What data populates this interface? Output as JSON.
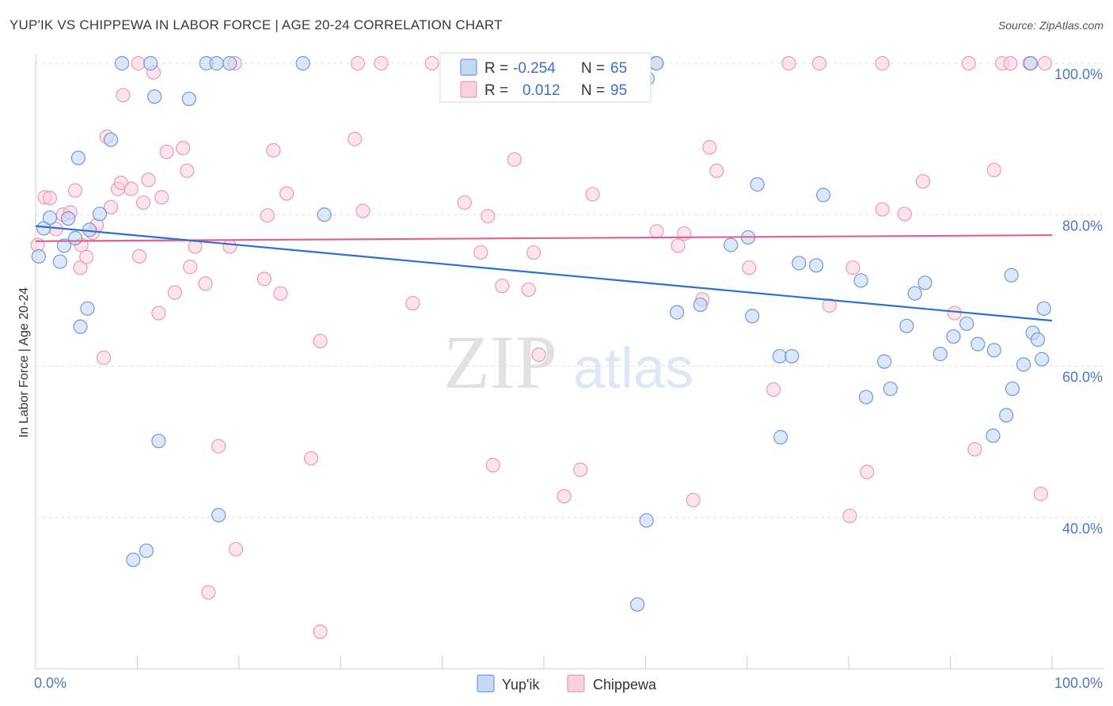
{
  "title": "YUP'IK VS CHIPPEWA IN LABOR FORCE | AGE 20-24 CORRELATION CHART",
  "source": "Source: ZipAtlas.com",
  "watermark": {
    "zip": "ZIP",
    "atlas": "atlas"
  },
  "legend_box": {
    "rows": [
      {
        "r_label": "R =",
        "r_value": "-0.254",
        "n_label": "N =",
        "n_value": "65"
      },
      {
        "r_label": "R =",
        "r_value": "0.012",
        "n_label": "N =",
        "n_value": "95"
      }
    ]
  },
  "colors": {
    "yupik_fill": "#c5d9f5",
    "yupik_stroke": "#6f9ad8",
    "yupik_line": "#2f6fce",
    "chippewa_fill": "#f9cfdd",
    "chippewa_stroke": "#ec9ab6",
    "chippewa_line": "#e2628f",
    "tick_text": "#4a78c8",
    "grid": "#dddddd"
  },
  "chart_data": {
    "type": "scatter",
    "title": "YUP'IK VS CHIPPEWA IN LABOR FORCE | AGE 20-24 CORRELATION CHART",
    "xlabel": "",
    "ylabel": "In Labor Force | Age 20-24",
    "xlim": [
      0,
      100
    ],
    "ylim": [
      20,
      102
    ],
    "x_tick_labels": [
      "0.0%",
      "100.0%"
    ],
    "y_ticks": [
      40,
      60,
      80,
      100
    ],
    "y_tick_labels": [
      "40.0%",
      "60.0%",
      "80.0%",
      "100.0%"
    ],
    "grid": true,
    "legend_position": "bottom-center",
    "series": [
      {
        "name": "Yup'ik",
        "r": -0.254,
        "n": 65,
        "trend": {
          "x": [
            0,
            100
          ],
          "y": [
            78.5,
            66.0
          ]
        },
        "points": [
          [
            0.3,
            74.5
          ],
          [
            0.8,
            78.2
          ],
          [
            1.4,
            79.6
          ],
          [
            2.4,
            73.8
          ],
          [
            2.8,
            75.9
          ],
          [
            3.2,
            79.5
          ],
          [
            3.9,
            76.9
          ],
          [
            5.1,
            67.6
          ],
          [
            4.4,
            65.2
          ],
          [
            5.3,
            78.0
          ],
          [
            6.3,
            80.1
          ],
          [
            4.2,
            87.5
          ],
          [
            7.4,
            89.9
          ],
          [
            8.5,
            100
          ],
          [
            11.3,
            100
          ],
          [
            16.8,
            100
          ],
          [
            17.8,
            100
          ],
          [
            19.1,
            100
          ],
          [
            11.7,
            95.6
          ],
          [
            15.1,
            95.3
          ],
          [
            12.1,
            50.1
          ],
          [
            9.6,
            34.4
          ],
          [
            10.9,
            35.6
          ],
          [
            18.0,
            40.3
          ],
          [
            26.3,
            100
          ],
          [
            28.4,
            80.0
          ],
          [
            51.6,
            100
          ],
          [
            60.2,
            98.0
          ],
          [
            77.5,
            82.6
          ],
          [
            61.1,
            100
          ],
          [
            70.1,
            77.0
          ],
          [
            63.1,
            67.1
          ],
          [
            65.4,
            68.1
          ],
          [
            68.4,
            76.0
          ],
          [
            70.5,
            66.6
          ],
          [
            76.8,
            73.3
          ],
          [
            73.2,
            61.3
          ],
          [
            74.4,
            61.3
          ],
          [
            73.3,
            50.6
          ],
          [
            60.1,
            39.6
          ],
          [
            59.2,
            28.5
          ],
          [
            71.0,
            84.0
          ],
          [
            75.1,
            73.6
          ],
          [
            81.2,
            71.3
          ],
          [
            83.5,
            60.6
          ],
          [
            81.7,
            55.9
          ],
          [
            84.1,
            57.0
          ],
          [
            85.7,
            65.3
          ],
          [
            86.5,
            69.6
          ],
          [
            87.5,
            71.0
          ],
          [
            89.0,
            61.6
          ],
          [
            90.3,
            63.9
          ],
          [
            91.6,
            65.6
          ],
          [
            92.7,
            62.9
          ],
          [
            94.2,
            50.8
          ],
          [
            95.5,
            53.5
          ],
          [
            96.1,
            57.0
          ],
          [
            96.0,
            72.0
          ],
          [
            97.2,
            60.2
          ],
          [
            98.1,
            64.4
          ],
          [
            98.6,
            63.5
          ],
          [
            99.0,
            60.9
          ],
          [
            99.2,
            67.6
          ],
          [
            94.3,
            62.1
          ],
          [
            97.9,
            100
          ]
        ]
      },
      {
        "name": "Chippewa",
        "r": 0.012,
        "n": 95,
        "trend": {
          "x": [
            0,
            100
          ],
          "y": [
            76.5,
            77.3
          ]
        },
        "points": [
          [
            0.2,
            76.0
          ],
          [
            0.9,
            82.3
          ],
          [
            1.4,
            82.2
          ],
          [
            2.0,
            78.1
          ],
          [
            2.7,
            80.0
          ],
          [
            3.4,
            80.3
          ],
          [
            3.9,
            83.2
          ],
          [
            4.5,
            76.0
          ],
          [
            4.4,
            73.0
          ],
          [
            5.0,
            74.4
          ],
          [
            5.6,
            77.6
          ],
          [
            6.0,
            78.6
          ],
          [
            6.7,
            61.1
          ],
          [
            7.0,
            90.3
          ],
          [
            7.4,
            81.0
          ],
          [
            8.1,
            83.4
          ],
          [
            8.4,
            84.2
          ],
          [
            8.6,
            95.8
          ],
          [
            9.4,
            83.4
          ],
          [
            10.1,
            100
          ],
          [
            10.2,
            74.5
          ],
          [
            10.6,
            81.6
          ],
          [
            11.1,
            84.6
          ],
          [
            11.6,
            98.8
          ],
          [
            12.1,
            67.0
          ],
          [
            12.4,
            82.3
          ],
          [
            12.9,
            88.3
          ],
          [
            13.7,
            69.7
          ],
          [
            14.5,
            88.8
          ],
          [
            14.9,
            85.8
          ],
          [
            15.2,
            73.1
          ],
          [
            15.7,
            75.8
          ],
          [
            16.7,
            70.9
          ],
          [
            17.0,
            30.1
          ],
          [
            18.0,
            49.4
          ],
          [
            19.1,
            75.8
          ],
          [
            19.6,
            100
          ],
          [
            19.7,
            35.8
          ],
          [
            22.5,
            71.5
          ],
          [
            22.8,
            79.9
          ],
          [
            23.4,
            88.5
          ],
          [
            24.1,
            69.6
          ],
          [
            24.7,
            82.8
          ],
          [
            27.1,
            47.8
          ],
          [
            28.0,
            63.3
          ],
          [
            28.0,
            24.9
          ],
          [
            31.7,
            100
          ],
          [
            31.4,
            90.0
          ],
          [
            32.2,
            80.5
          ],
          [
            34.0,
            100
          ],
          [
            37.1,
            68.3
          ],
          [
            39.0,
            100
          ],
          [
            42.2,
            81.6
          ],
          [
            43.3,
            95.9
          ],
          [
            43.8,
            75.0
          ],
          [
            44.5,
            79.8
          ],
          [
            45.0,
            46.9
          ],
          [
            45.9,
            70.6
          ],
          [
            47.1,
            87.3
          ],
          [
            48.5,
            70.1
          ],
          [
            49.0,
            75.0
          ],
          [
            49.5,
            61.5
          ],
          [
            52.0,
            42.8
          ],
          [
            53.6,
            46.3
          ],
          [
            54.8,
            82.7
          ],
          [
            61.1,
            77.8
          ],
          [
            63.2,
            75.9
          ],
          [
            63.8,
            77.5
          ],
          [
            65.6,
            68.8
          ],
          [
            66.3,
            88.9
          ],
          [
            67.0,
            85.8
          ],
          [
            70.2,
            73.0
          ],
          [
            72.6,
            56.9
          ],
          [
            74.1,
            100
          ],
          [
            77.1,
            100
          ],
          [
            78.1,
            68.0
          ],
          [
            80.1,
            40.2
          ],
          [
            80.4,
            73.0
          ],
          [
            81.8,
            46.0
          ],
          [
            83.3,
            80.7
          ],
          [
            83.3,
            100
          ],
          [
            85.5,
            80.1
          ],
          [
            87.3,
            84.4
          ],
          [
            90.4,
            67.0
          ],
          [
            91.8,
            100
          ],
          [
            92.4,
            49.0
          ],
          [
            94.3,
            85.9
          ],
          [
            95.1,
            100
          ],
          [
            97.8,
            100
          ],
          [
            98.9,
            43.1
          ],
          [
            99.3,
            100
          ],
          [
            64.7,
            42.3
          ],
          [
            58.6,
            98.8
          ],
          [
            61.0,
            100
          ],
          [
            95.9,
            100
          ]
        ]
      }
    ]
  },
  "bottom_legend": [
    {
      "label": "Yup'ik"
    },
    {
      "label": "Chippewa"
    }
  ]
}
